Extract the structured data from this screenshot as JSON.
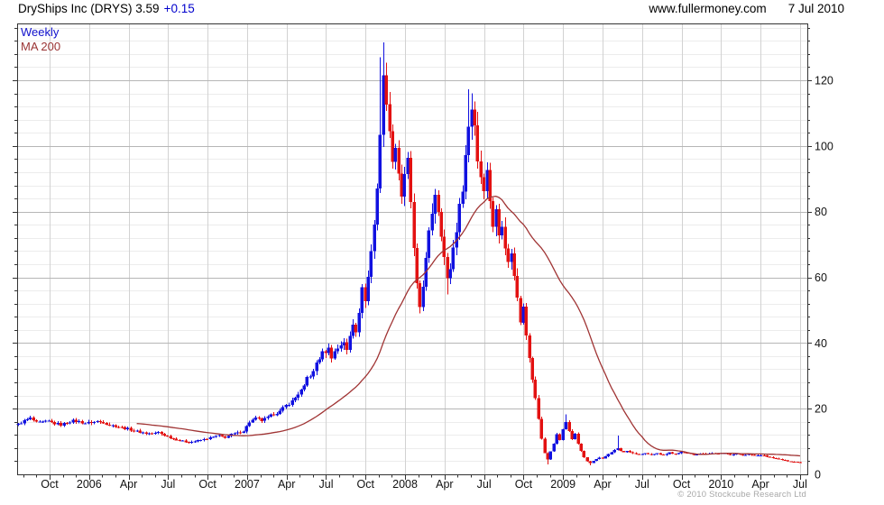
{
  "header": {
    "title": "DryShips Inc (DRYS) 3.59",
    "change": "+0.15",
    "site": "www.fullermoney.com",
    "date": "7 Jul 2010"
  },
  "legend": {
    "series": "Weekly",
    "ma": "MA 200"
  },
  "footer": {
    "copyright": "© 2010 Stockcube Research Ltd"
  },
  "colors": {
    "up": "#1111e0",
    "down": "#e31111",
    "ma": "#a03434",
    "change": "#0000cc",
    "legend_series": "#1111cc",
    "legend_ma": "#993333",
    "grid_minor": "#ececec",
    "grid_vert": "#d2d2d2",
    "grid_major": "#b6b6b6",
    "axis": "#333333",
    "label": "#111111",
    "copyright": "#a8a8a8"
  },
  "chart_data": {
    "type": "candlestick",
    "title": "DryShips Inc (DRYS) weekly with 200-day moving average",
    "timeframe": "Weekly",
    "ma_label": "MA 200",
    "last_price": 3.59,
    "change": 0.15,
    "x_labels": [
      "Oct",
      "2006",
      "Apr",
      "Jul",
      "Oct",
      "2007",
      "Apr",
      "Jul",
      "Oct",
      "2008",
      "Apr",
      "Jul",
      "Oct",
      "2009",
      "Apr",
      "Jul",
      "Oct",
      "2010",
      "Apr",
      "Jul"
    ],
    "y_ticks": [
      0,
      20,
      40,
      60,
      80,
      100,
      120
    ],
    "ylim": [
      0,
      137
    ],
    "y_minor_step": 4,
    "weeks": 258,
    "ma_window": 40,
    "close_keypoints": [
      [
        0,
        15.2
      ],
      [
        2,
        16.3
      ],
      [
        4,
        17.1
      ],
      [
        6,
        15.7
      ],
      [
        8,
        15.9
      ],
      [
        10,
        16.2
      ],
      [
        12,
        15.5
      ],
      [
        14,
        15.1
      ],
      [
        16,
        15.8
      ],
      [
        18,
        16.3
      ],
      [
        20,
        16.0
      ],
      [
        22,
        15.6
      ],
      [
        24,
        15.8
      ],
      [
        26,
        16.1
      ],
      [
        28,
        15.9
      ],
      [
        30,
        15.0
      ],
      [
        32,
        14.7
      ],
      [
        34,
        14.2
      ],
      [
        36,
        13.9
      ],
      [
        38,
        13.4
      ],
      [
        40,
        12.9
      ],
      [
        42,
        12.5
      ],
      [
        44,
        12.3
      ],
      [
        46,
        12.8
      ],
      [
        48,
        11.9
      ],
      [
        50,
        11.2
      ],
      [
        52,
        10.6
      ],
      [
        54,
        10.1
      ],
      [
        56,
        9.8
      ],
      [
        58,
        10.0
      ],
      [
        60,
        10.4
      ],
      [
        62,
        10.9
      ],
      [
        64,
        11.3
      ],
      [
        66,
        11.7
      ],
      [
        68,
        11.3
      ],
      [
        70,
        12.1
      ],
      [
        72,
        12.6
      ],
      [
        74,
        13.2
      ],
      [
        76,
        16.0
      ],
      [
        78,
        17.0
      ],
      [
        80,
        16.4
      ],
      [
        82,
        17.3
      ],
      [
        84,
        18.4
      ],
      [
        86,
        19.2
      ],
      [
        88,
        21.0
      ],
      [
        90,
        22.3
      ],
      [
        92,
        24.5
      ],
      [
        94,
        26.5
      ],
      [
        95,
        29.5
      ],
      [
        97,
        31.0
      ],
      [
        98,
        34.0
      ],
      [
        100,
        36.8
      ],
      [
        102,
        38.2
      ],
      [
        103,
        36.0
      ],
      [
        105,
        38.5
      ],
      [
        107,
        40.5
      ],
      [
        108,
        37.5
      ],
      [
        109,
        42.0
      ],
      [
        110,
        46.0
      ],
      [
        111,
        44.0
      ],
      [
        112,
        50.0
      ],
      [
        113,
        56.0
      ],
      [
        114,
        53.5
      ],
      [
        115,
        60.0
      ],
      [
        116,
        68.0
      ],
      [
        117,
        76.0
      ],
      [
        118,
        88.0
      ],
      [
        119,
        104.0
      ],
      [
        120,
        120.0
      ],
      [
        121,
        115.0
      ],
      [
        122,
        103.0
      ],
      [
        123,
        97.0
      ],
      [
        124,
        100.0
      ],
      [
        125,
        92.0
      ],
      [
        126,
        85.0
      ],
      [
        127,
        90.0
      ],
      [
        128,
        95.0
      ],
      [
        129,
        83.0
      ],
      [
        130,
        68.0
      ],
      [
        131,
        57.0
      ],
      [
        132,
        51.0
      ],
      [
        133,
        58.0
      ],
      [
        134,
        65.0
      ],
      [
        135,
        73.0
      ],
      [
        136,
        80.0
      ],
      [
        137,
        86.0
      ],
      [
        138,
        81.0
      ],
      [
        139,
        74.0
      ],
      [
        140,
        66.0
      ],
      [
        141,
        59.0
      ],
      [
        142,
        63.0
      ],
      [
        143,
        69.0
      ],
      [
        144,
        75.0
      ],
      [
        145,
        81.0
      ],
      [
        146,
        88.0
      ],
      [
        147,
        97.0
      ],
      [
        148,
        106.0
      ],
      [
        149,
        112.0
      ],
      [
        150,
        107.0
      ],
      [
        151,
        96.0
      ],
      [
        152,
        91.0
      ],
      [
        153,
        88.0
      ],
      [
        154,
        92.0
      ],
      [
        155,
        84.0
      ],
      [
        156,
        76.0
      ],
      [
        157,
        80.0
      ],
      [
        158,
        73.0
      ],
      [
        159,
        77.0
      ],
      [
        160,
        70.0
      ],
      [
        161,
        64.0
      ],
      [
        162,
        68.0
      ],
      [
        163,
        60.0
      ],
      [
        164,
        54.0
      ],
      [
        165,
        47.0
      ],
      [
        166,
        52.0
      ],
      [
        167,
        43.0
      ],
      [
        168,
        35.0
      ],
      [
        169,
        29.0
      ],
      [
        170,
        23.0
      ],
      [
        171,
        17.0
      ],
      [
        172,
        11.0
      ],
      [
        173,
        6.5
      ],
      [
        174,
        4.5
      ],
      [
        175,
        7.0
      ],
      [
        176,
        9.5
      ],
      [
        177,
        12.0
      ],
      [
        178,
        10.5
      ],
      [
        179,
        13.5
      ],
      [
        180,
        16.0
      ],
      [
        181,
        13.5
      ],
      [
        182,
        11.0
      ],
      [
        183,
        12.3
      ],
      [
        184,
        9.4
      ],
      [
        185,
        7.0
      ],
      [
        186,
        5.2
      ],
      [
        187,
        4.0
      ],
      [
        188,
        3.5
      ],
      [
        189,
        4.0
      ],
      [
        190,
        4.6
      ],
      [
        191,
        5.1
      ],
      [
        192,
        4.8
      ],
      [
        193,
        5.4
      ],
      [
        194,
        6.0
      ],
      [
        195,
        6.6
      ],
      [
        196,
        7.4
      ],
      [
        197,
        8.0
      ],
      [
        198,
        7.2
      ],
      [
        199,
        6.7
      ],
      [
        200,
        7.1
      ],
      [
        202,
        6.4
      ],
      [
        204,
        6.0
      ],
      [
        206,
        6.4
      ],
      [
        208,
        5.8
      ],
      [
        210,
        6.3
      ],
      [
        212,
        6.0
      ],
      [
        214,
        6.6
      ],
      [
        216,
        6.2
      ],
      [
        218,
        6.8
      ],
      [
        220,
        6.4
      ],
      [
        222,
        5.9
      ],
      [
        224,
        6.5
      ],
      [
        226,
        6.1
      ],
      [
        228,
        6.6
      ],
      [
        230,
        6.2
      ],
      [
        232,
        6.5
      ],
      [
        234,
        5.9
      ],
      [
        236,
        6.3
      ],
      [
        238,
        5.8
      ],
      [
        240,
        6.1
      ],
      [
        242,
        5.7
      ],
      [
        244,
        5.9
      ],
      [
        246,
        5.4
      ],
      [
        248,
        5.0
      ],
      [
        250,
        4.6
      ],
      [
        252,
        4.2
      ],
      [
        254,
        3.9
      ],
      [
        256,
        3.7
      ],
      [
        257,
        3.6
      ]
    ],
    "wick_overrides": [
      {
        "week": 4,
        "high": 17.8
      },
      {
        "week": 119,
        "high": 127.0
      },
      {
        "week": 120,
        "high": 131.5
      },
      {
        "week": 132,
        "low": 49.0
      },
      {
        "week": 141,
        "low": 54.8
      },
      {
        "week": 148,
        "high": 117.3
      },
      {
        "week": 149,
        "high": 116.0
      },
      {
        "week": 174,
        "low": 3.0
      },
      {
        "week": 180,
        "high": 18.2
      },
      {
        "week": 188,
        "low": 2.8
      },
      {
        "week": 197,
        "high": 11.8
      }
    ]
  }
}
